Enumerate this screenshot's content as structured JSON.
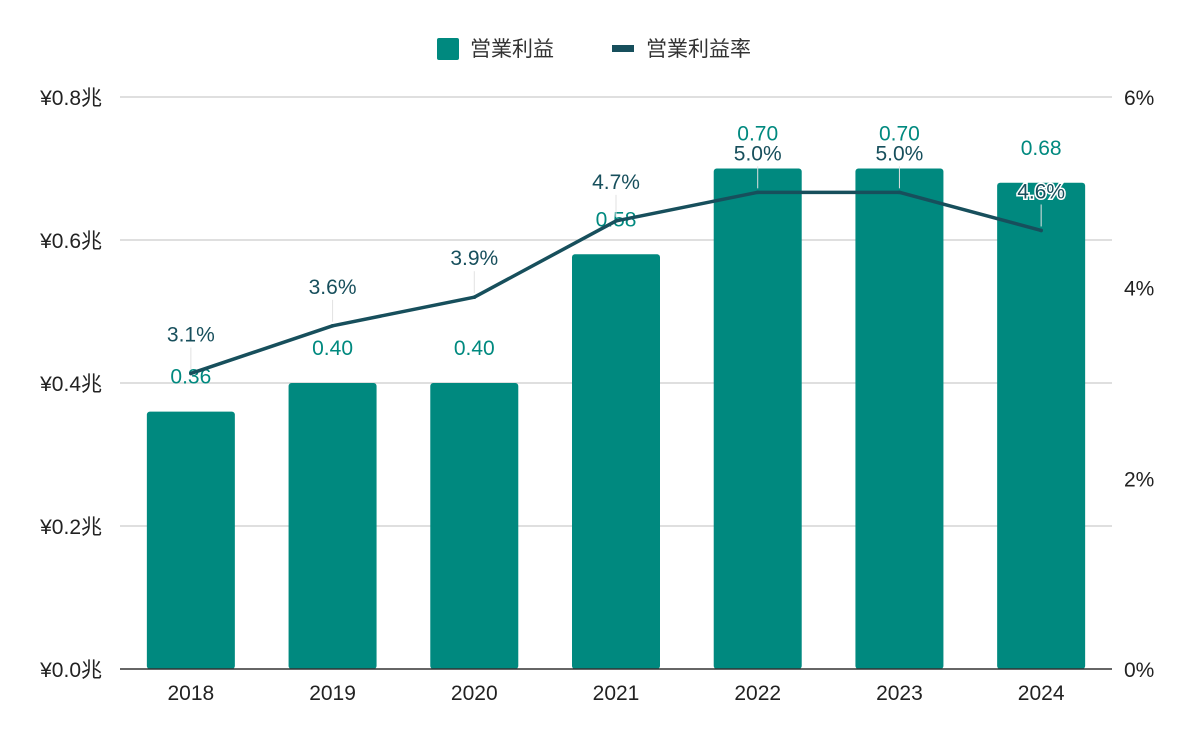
{
  "legend": {
    "bar_label": "営業利益",
    "line_label": "営業利益率",
    "placement": "top-center"
  },
  "colors": {
    "bar": "#00897f",
    "line": "#174f5c",
    "bar_label_text": "#00897f",
    "line_label_text": "#174f5c",
    "grid": "#cccccc",
    "axis": "#333333"
  },
  "chart_data": {
    "type": "bar",
    "categories": [
      "2018",
      "2019",
      "2020",
      "2021",
      "2022",
      "2023",
      "2024"
    ],
    "series": [
      {
        "name": "営業利益",
        "type": "bar",
        "axis": "left",
        "values": [
          0.36,
          0.4,
          0.4,
          0.58,
          0.7,
          0.7,
          0.68
        ],
        "labels": [
          "0.36",
          "0.40",
          "0.40",
          "0.58",
          "0.70",
          "0.70",
          "0.68"
        ]
      },
      {
        "name": "営業利益率",
        "type": "line",
        "axis": "right",
        "values": [
          3.1,
          3.6,
          3.9,
          4.7,
          5.0,
          5.0,
          4.6
        ],
        "labels": [
          "3.1%",
          "3.6%",
          "3.9%",
          "4.7%",
          "5.0%",
          "5.0%",
          "4.6%"
        ]
      }
    ],
    "left_axis": {
      "ylim": [
        0,
        0.8
      ],
      "ticks": [
        0,
        0.2,
        0.4,
        0.6,
        0.8
      ],
      "tick_labels": [
        "¥0.0兆",
        "¥0.2兆",
        "¥0.4兆",
        "¥0.6兆",
        "¥0.8兆"
      ]
    },
    "right_axis": {
      "ylim": [
        0,
        6
      ],
      "ticks": [
        0,
        2,
        4,
        6
      ],
      "tick_labels": [
        "0%",
        "2%",
        "4%",
        "6%"
      ]
    },
    "grid": true
  }
}
